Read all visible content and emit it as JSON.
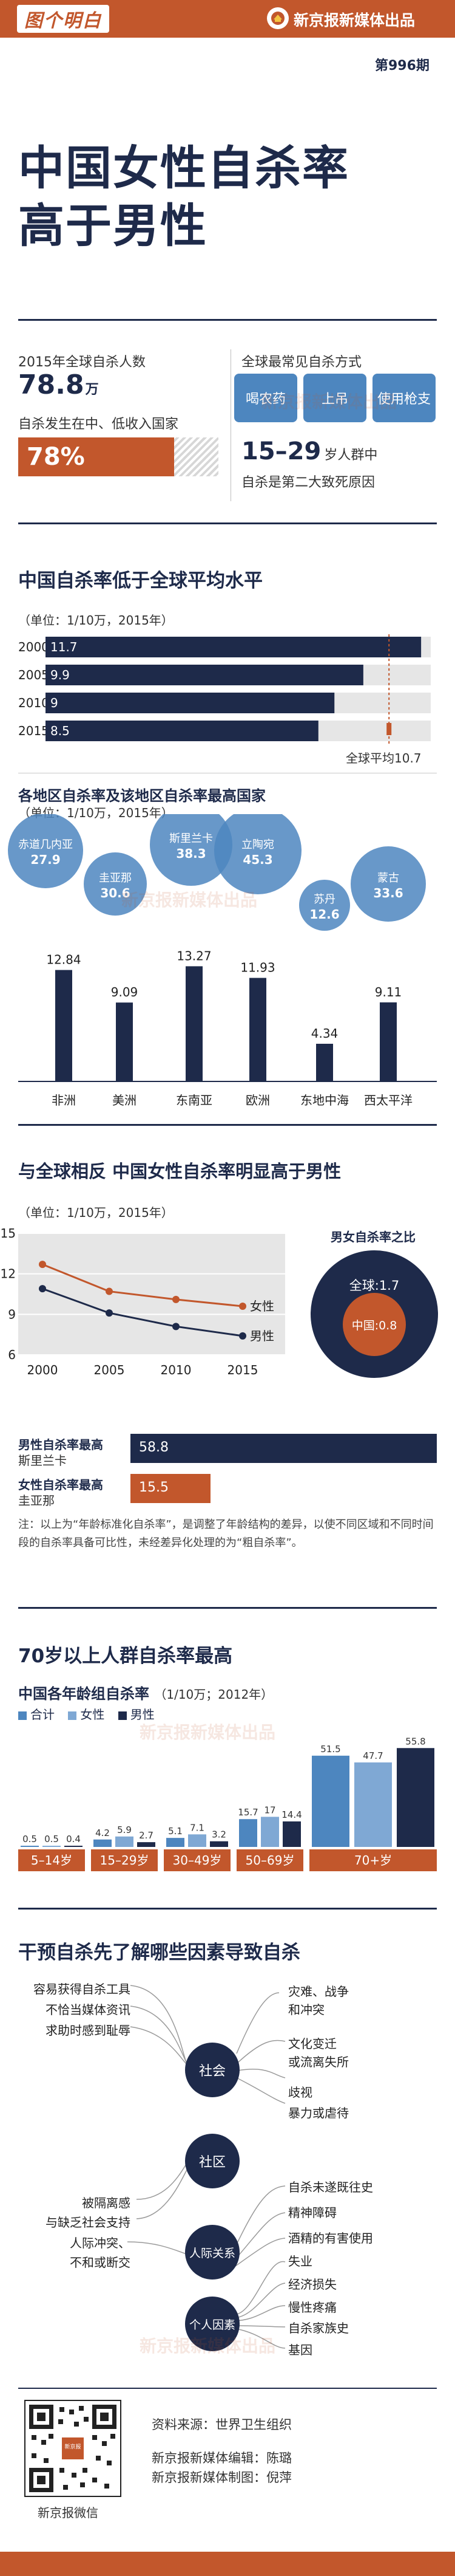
{
  "header": {
    "logo_text": "图个明白",
    "brand": "新京报新媒体出品",
    "issue": "第996期"
  },
  "hero": {
    "title_line1": "中国女性自杀率",
    "title_line2": "高于男性"
  },
  "summary": {
    "global_label": "2015年全球自杀人数",
    "global_value": "78.8",
    "global_unit": "万",
    "income_label": "自杀发生在中、低收入国家",
    "income_value": "78%",
    "income_fraction": 0.78,
    "methods_label": "全球最常见自杀方式",
    "methods": [
      "喝农药",
      "上吊",
      "使用枪支"
    ],
    "age_value": "15–29",
    "age_text1": "岁人群中",
    "age_text2": "自杀是第二大致死原因"
  },
  "section1": {
    "title": "中国自杀率低于全球平均水平",
    "unit_note": "（单位：1/10万，2015年）",
    "years": [
      "2000",
      "2005",
      "2010",
      "2015"
    ],
    "values": [
      "11.7",
      "9.9",
      "9",
      "8.5"
    ],
    "avg_label": "全球平均10.7",
    "avg_value": 10.7,
    "axis_max": 12.0
  },
  "section2": {
    "title": "各地区自杀率及该地区自杀率最高国家",
    "unit_note": "（单位：1/10万，2015年）",
    "regions": [
      {
        "name": "非洲",
        "value": "12.84",
        "country": "赤道几内亚",
        "country_value": "27.9"
      },
      {
        "name": "美洲",
        "value": "9.09",
        "country": "圭亚那",
        "country_value": "30.6"
      },
      {
        "name": "东南亚",
        "value": "13.27",
        "country": "斯里兰卡",
        "country_value": "38.3"
      },
      {
        "name": "欧洲",
        "value": "11.93",
        "country": "立陶宛",
        "country_value": "45.3"
      },
      {
        "name": "东地中海",
        "value": "4.34",
        "country": "苏丹",
        "country_value": "12.6"
      },
      {
        "name": "西太平洋",
        "value": "9.11",
        "country": "蒙古",
        "country_value": "33.6"
      }
    ]
  },
  "section3": {
    "title": "与全球相反  中国女性自杀率明显高于男性",
    "unit_note": "（单位：1/10万，2015年）",
    "ratio_title": "男女自杀率之比",
    "ratio_global": "全球:1.7",
    "ratio_china": "中国:0.8",
    "female_label": "女性",
    "male_label": "男性",
    "max_male_label": "男性自杀率最高",
    "max_male_country": "斯里兰卡",
    "max_male_value": "58.8",
    "max_female_label": "女性自杀率最高",
    "max_female_country": "圭亚那",
    "max_female_value": "15.5",
    "note": "注：以上为“年龄标准化自杀率”，是调整了年龄结构的差异，以使不同区域和不同时间段的自杀率具备可比性，未经差异化处理的为“粗自杀率”。"
  },
  "chart_data": [
    {
      "type": "bar",
      "title": "中国自杀率低于全球平均水平",
      "categories": [
        "2000",
        "2005",
        "2010",
        "2015"
      ],
      "values": [
        11.7,
        9.9,
        9,
        8.5
      ],
      "reference_line": 10.7
    },
    {
      "type": "bar",
      "title": "各地区自杀率及该地区自杀率最高国家",
      "categories": [
        "非洲",
        "美洲",
        "东南亚",
        "欧洲",
        "东地中海",
        "西太平洋"
      ],
      "values": [
        12.84,
        9.09,
        13.27,
        11.93,
        4.34,
        9.11
      ]
    },
    {
      "type": "line",
      "title": "与全球相反  中国女性自杀率明显高于男性",
      "x": [
        2000,
        2005,
        2010,
        2015
      ],
      "ylim": [
        6,
        15
      ],
      "yticks": [
        6,
        9,
        12,
        15
      ],
      "series": [
        {
          "name": "女性",
          "values": [
            12.7,
            10.7,
            10.1,
            9.6
          ],
          "color": "#c2572c"
        },
        {
          "name": "男性",
          "values": [
            10.9,
            9.1,
            8.1,
            7.4
          ],
          "color": "#1e2a4a"
        }
      ]
    },
    {
      "type": "bar",
      "title": "中国各年龄组自杀率",
      "unit_note": "（1/10万；2012年）",
      "categories": [
        "5–14岁",
        "15–29岁",
        "30–49岁",
        "50–69岁",
        "70+岁"
      ],
      "series": [
        {
          "name": "合计",
          "values": [
            0.5,
            4.2,
            5.1,
            15.7,
            51.5
          ],
          "color": "#4d86bf"
        },
        {
          "name": "女性",
          "values": [
            0.5,
            5.9,
            7.1,
            17.0,
            47.7
          ],
          "color": "#7fa8d4"
        },
        {
          "name": "男性",
          "values": [
            0.4,
            2.7,
            3.2,
            14.4,
            55.8
          ],
          "color": "#1e2a4a"
        }
      ]
    }
  ],
  "section4": {
    "title": "70岁以上人群自杀率最高",
    "subtitle": "中国各年龄组自杀率",
    "unit_note": "（1/10万；2012年）",
    "legend": [
      "合计",
      "女性",
      "男性"
    ],
    "labels": [
      [
        "0.5",
        "0.5",
        "0.4"
      ],
      [
        "4.2",
        "5.9",
        "2.7"
      ],
      [
        "5.1",
        "7.1",
        "3.2"
      ],
      [
        "15.7",
        "17",
        "14.4"
      ],
      [
        "51.5",
        "47.7",
        "55.8"
      ]
    ],
    "ages": [
      "5–14岁",
      "15–29岁",
      "30–49岁",
      "50–69岁",
      "70+岁"
    ]
  },
  "section5": {
    "title": "干预自杀先了解哪些因素导致自杀",
    "left_items": [
      "容易获得自杀工具",
      "不恰当媒体资讯",
      "求助时感到耻辱",
      "被隔离感",
      "与缺乏社会支持",
      "人际冲突、",
      "不和或断交"
    ],
    "nodes": [
      "社会",
      "社区",
      "人际关系",
      "个人因素"
    ],
    "right_items": [
      "灾难、战争",
      "和冲突",
      "文化变迁",
      "或流离失所",
      "歧视",
      "暴力或虐待",
      "自杀未遂既往史",
      "精神障碍",
      "酒精的有害使用",
      "失业",
      "经济损失",
      "慢性疼痛",
      "自杀家族史",
      "基因"
    ]
  },
  "footer": {
    "source": "资料来源：世界卫生组织",
    "editor": "新京报新媒体编辑：陈璐",
    "designer": "新京报新媒体制图：倪萍",
    "wechat": "新京报微信",
    "qr_center": "新京报"
  }
}
